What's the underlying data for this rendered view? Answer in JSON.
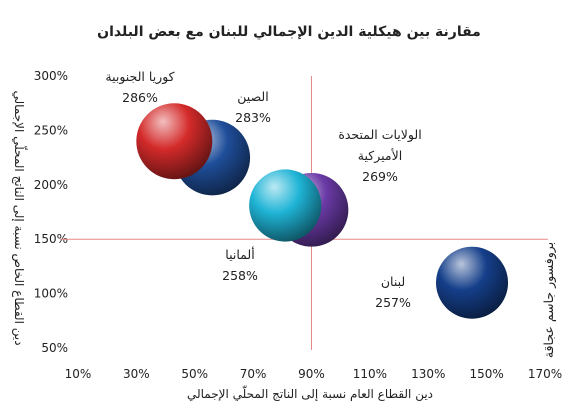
{
  "chart_data": {
    "type": "bubble",
    "title": "مقارنة بين هيكلية الدين الإجمالي للبنان مع بعض البلدان",
    "xlabel": "دين القطاع العام نسبة إلى الناتج المحلّي الإجمالي",
    "ylabel": "دين القطاع الخاص نسبة إلى الناتج المحلّي الإجمالي",
    "xlim": [
      10,
      170
    ],
    "ylim": [
      50,
      300
    ],
    "x_ticks": [
      "10%",
      "30%",
      "50%",
      "70%",
      "90%",
      "110%",
      "130%",
      "150%",
      "170%"
    ],
    "y_ticks": [
      "50%",
      "100%",
      "150%",
      "200%",
      "250%",
      "300%"
    ],
    "reference_lines": {
      "x": 90,
      "y": 150
    },
    "side_note": "بروفسور جاسم عجاقة",
    "series": [
      {
        "name": "كوريا الجنوبية",
        "value_label": "286%",
        "x": 43,
        "y": 240,
        "total": 286,
        "color": "#d42a2a"
      },
      {
        "name": "الصين",
        "value_label": "283%",
        "x": 56,
        "y": 225,
        "total": 283,
        "color": "#1f4e9a"
      },
      {
        "name": "الولايات المتحدة الأميركية",
        "value_label": "269%",
        "x": 90,
        "y": 177,
        "total": 269,
        "color": "#6a3aa6"
      },
      {
        "name": "ألمانيا",
        "value_label": "258%",
        "x": 81,
        "y": 181,
        "total": 258,
        "color": "#1fb4d6"
      },
      {
        "name": "لبنان",
        "value_label": "257%",
        "x": 145,
        "y": 110,
        "total": 257,
        "color": "#153f8a"
      }
    ],
    "labels": [
      {
        "lines": [
          "كوريا الجنوبية",
          "286%"
        ]
      },
      {
        "lines": [
          "الصين",
          "283%"
        ]
      },
      {
        "lines": [
          "الولايات المتحدة",
          "الأميركية",
          "269%"
        ]
      },
      {
        "lines": [
          "ألمانيا",
          "258%"
        ]
      },
      {
        "lines": [
          "لبنان",
          "257%"
        ]
      }
    ]
  }
}
